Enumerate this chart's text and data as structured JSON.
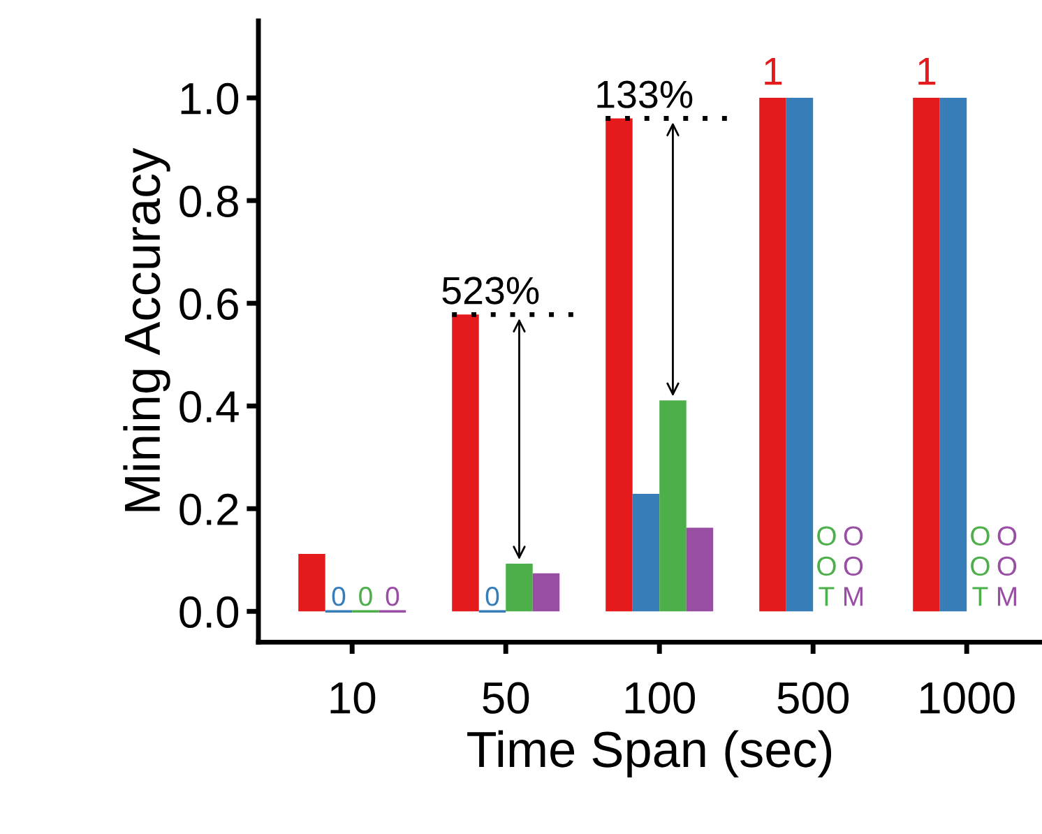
{
  "chart_data": {
    "type": "bar",
    "xlabel": "Time Span (sec)",
    "ylabel": "Mining Accuracy",
    "categories": [
      "10",
      "50",
      "100",
      "500",
      "1000"
    ],
    "series": [
      {
        "color": "#e41a1c",
        "values": [
          0.112,
          0.578,
          0.96,
          1,
          1
        ],
        "value_labels": [
          null,
          null,
          null,
          "1",
          "1"
        ]
      },
      {
        "color": "#377eb8",
        "values": [
          0,
          0,
          0.229,
          1,
          1
        ],
        "value_labels": [
          "0",
          "0",
          null,
          null,
          null
        ]
      },
      {
        "color": "#4daf4a",
        "values": [
          0,
          0.093,
          0.411,
          null,
          null
        ],
        "value_labels": [
          "0",
          null,
          null,
          "OOT",
          "OOT"
        ]
      },
      {
        "color": "#984ea3",
        "values": [
          0,
          0.074,
          0.163,
          null,
          null
        ],
        "value_labels": [
          "0",
          null,
          null,
          "OOM",
          "OOM"
        ]
      }
    ],
    "annotations": [
      "523%",
      "133%"
    ],
    "ylim": [
      -0.06,
      1.15
    ],
    "yticks": [
      {
        "value": 0,
        "label": "0.0"
      },
      {
        "value": 0.2,
        "label": "0.2"
      },
      {
        "value": 0.4,
        "label": "0.4"
      },
      {
        "value": 0.6,
        "label": "0.6"
      },
      {
        "value": 0.8,
        "label": "0.8"
      },
      {
        "value": 1,
        "label": "1.0"
      }
    ],
    "grid": false,
    "legend": false
  }
}
